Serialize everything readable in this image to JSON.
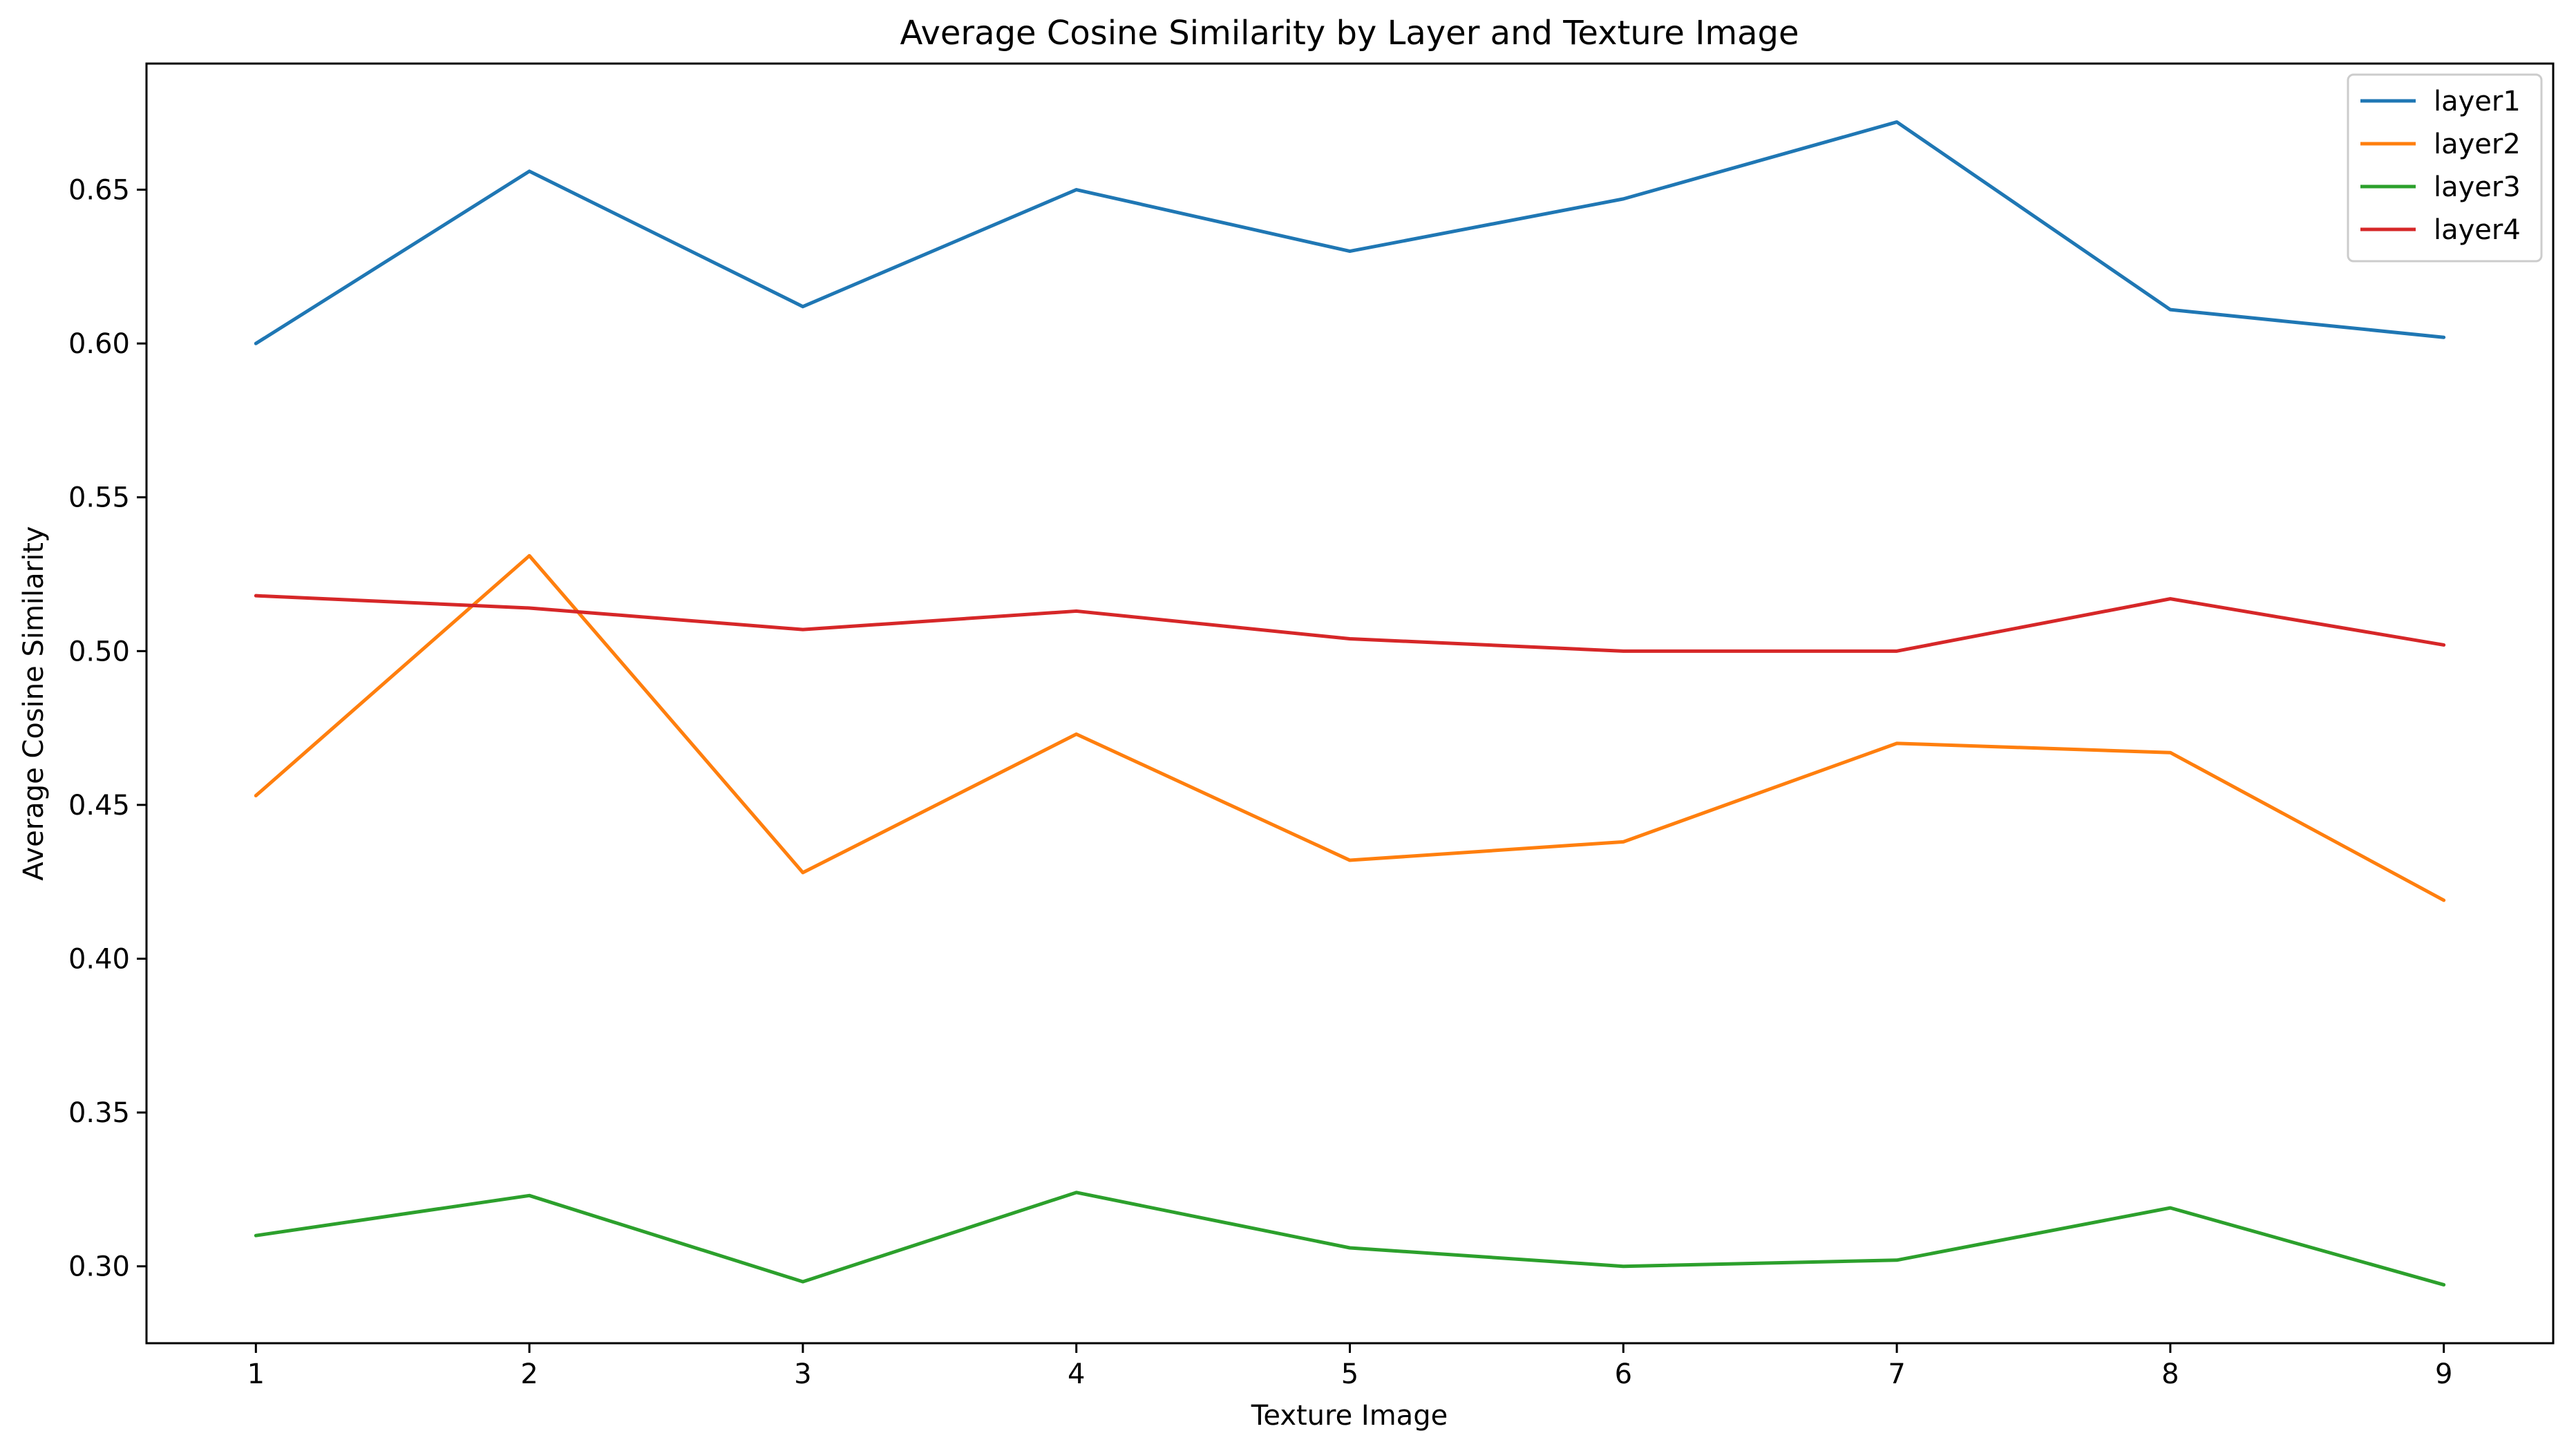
{
  "chart_data": {
    "type": "line",
    "title": "Average Cosine Similarity by Layer and Texture Image",
    "xlabel": "Texture Image",
    "ylabel": "Average Cosine Similarity",
    "x": [
      1,
      2,
      3,
      4,
      5,
      6,
      7,
      8,
      9
    ],
    "x_ticks": [
      "1",
      "2",
      "3",
      "4",
      "5",
      "6",
      "7",
      "8",
      "9"
    ],
    "xlim": [
      0.6,
      9.4
    ],
    "ylim": [
      0.275,
      0.691
    ],
    "y_ticks": [
      "0.30",
      "0.35",
      "0.40",
      "0.45",
      "0.50",
      "0.55",
      "0.60",
      "0.65"
    ],
    "grid": false,
    "legend_position": "top-right",
    "series": [
      {
        "name": "layer1",
        "color": "#1f77b4",
        "values": [
          0.6,
          0.656,
          0.612,
          0.65,
          0.63,
          0.647,
          0.672,
          0.611,
          0.602
        ]
      },
      {
        "name": "layer2",
        "color": "#ff7f0e",
        "values": [
          0.453,
          0.531,
          0.428,
          0.473,
          0.432,
          0.438,
          0.47,
          0.467,
          0.419
        ]
      },
      {
        "name": "layer3",
        "color": "#2ca02c",
        "values": [
          0.31,
          0.323,
          0.295,
          0.324,
          0.306,
          0.3,
          0.302,
          0.319,
          0.294
        ]
      },
      {
        "name": "layer4",
        "color": "#d62728",
        "values": [
          0.518,
          0.514,
          0.507,
          0.513,
          0.504,
          0.5,
          0.5,
          0.517,
          0.502
        ]
      }
    ]
  }
}
